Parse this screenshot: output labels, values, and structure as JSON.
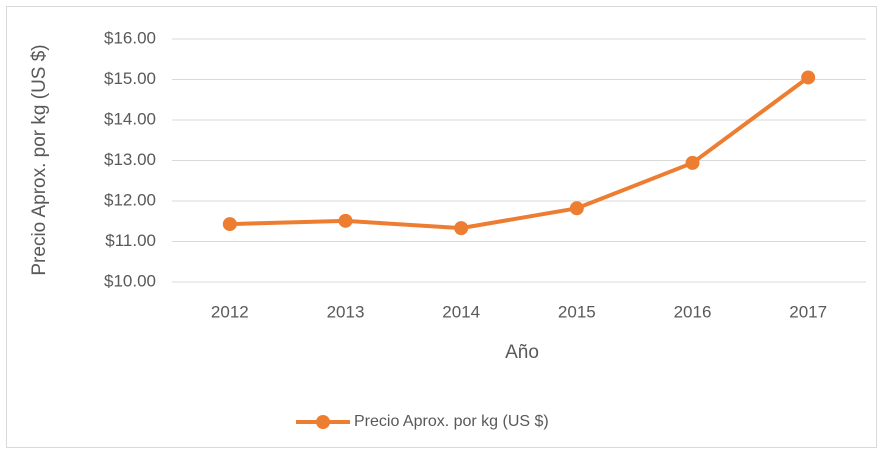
{
  "chart_data": {
    "type": "line",
    "x_label": "Año",
    "y_label": "Precio Aprox. por kg (US $)",
    "categories": [
      "2012",
      "2013",
      "2014",
      "2015",
      "2016",
      "2017"
    ],
    "series": [
      {
        "name": "Precio Aprox. por kg (US $)",
        "color": "#ed7d31",
        "values": [
          11.43,
          11.51,
          11.33,
          11.82,
          12.94,
          15.05
        ]
      }
    ],
    "ylim": [
      10,
      16
    ],
    "yticks": [
      {
        "value": 10,
        "label": "$10.00"
      },
      {
        "value": 11,
        "label": "$11.00"
      },
      {
        "value": 12,
        "label": "$12.00"
      },
      {
        "value": 13,
        "label": "$13.00"
      },
      {
        "value": 14,
        "label": "$14.00"
      },
      {
        "value": 15,
        "label": "$15.00"
      },
      {
        "value": 16,
        "label": "$16.00"
      }
    ],
    "grid": true,
    "legend": "bottom"
  }
}
